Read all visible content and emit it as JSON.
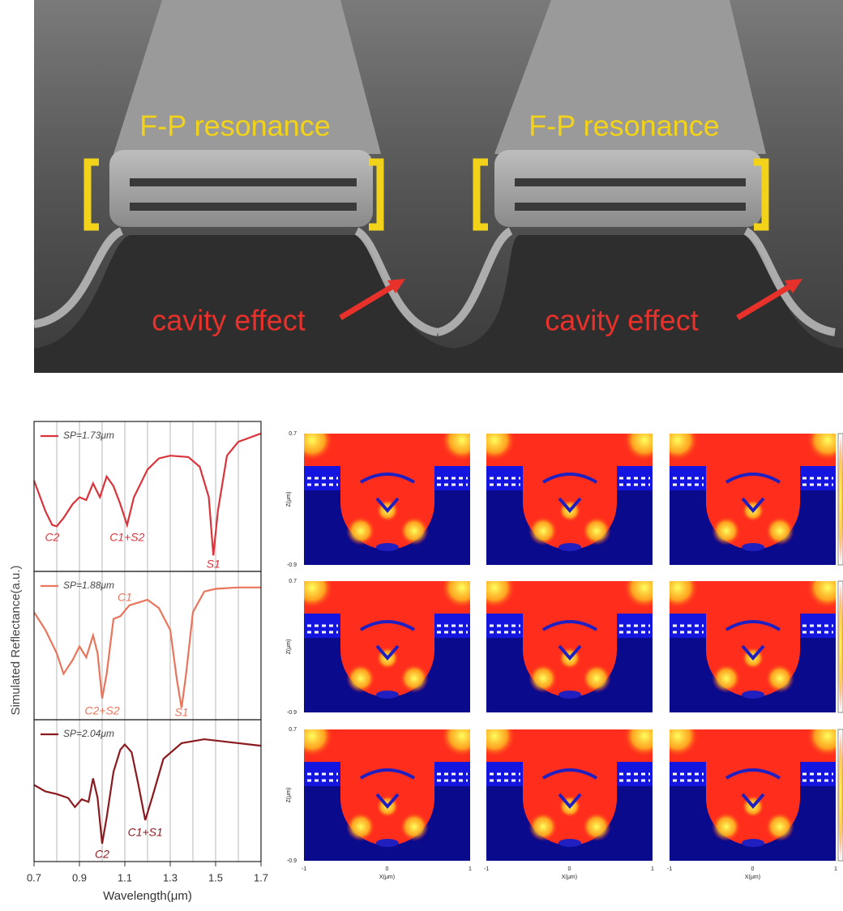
{
  "sem_image": {
    "fp_labels": [
      "F-P resonance",
      "F-P resonance"
    ],
    "cavity_labels": [
      "cavity effect",
      "cavity effect"
    ]
  },
  "chart_data": {
    "type": "line",
    "xlabel": "Wavelength(μm)",
    "ylabel": "Simulated Reflectance(a.u.)",
    "xlim": [
      0.7,
      1.7
    ],
    "xticks": [
      0.7,
      0.9,
      1.1,
      1.3,
      1.5,
      1.7
    ],
    "minor_xticks": [
      0.8,
      1.0,
      1.2,
      1.4,
      1.6
    ],
    "grid": true,
    "panels": [
      {
        "ylim": [
          0,
          1
        ],
        "series": [
          {
            "name": "SP=1.73μm",
            "color": "#d9343b",
            "x": [
              0.7,
              0.75,
              0.78,
              0.8,
              0.83,
              0.87,
              0.9,
              0.93,
              0.96,
              0.99,
              1.02,
              1.05,
              1.08,
              1.11,
              1.14,
              1.2,
              1.25,
              1.3,
              1.38,
              1.43,
              1.47,
              1.49,
              1.51,
              1.55,
              1.6,
              1.65,
              1.7
            ],
            "values": [
              0.62,
              0.4,
              0.3,
              0.29,
              0.35,
              0.45,
              0.5,
              0.48,
              0.6,
              0.5,
              0.65,
              0.58,
              0.45,
              0.3,
              0.5,
              0.7,
              0.78,
              0.8,
              0.79,
              0.72,
              0.5,
              0.08,
              0.4,
              0.8,
              0.9,
              0.93,
              0.96
            ]
          }
        ],
        "annotations": [
          {
            "text": "C2",
            "x": 0.78,
            "position": "below"
          },
          {
            "text": "C1+S2",
            "x": 1.11,
            "position": "below"
          },
          {
            "text": "S1",
            "x": 1.49,
            "position": "below"
          }
        ]
      },
      {
        "ylim": [
          0,
          1
        ],
        "series": [
          {
            "name": "SP=1.88μm",
            "color": "#e8755c",
            "x": [
              0.7,
              0.75,
              0.8,
              0.83,
              0.87,
              0.9,
              0.93,
              0.96,
              0.98,
              1.0,
              1.02,
              1.05,
              1.08,
              1.12,
              1.16,
              1.2,
              1.25,
              1.3,
              1.33,
              1.35,
              1.37,
              1.4,
              1.45,
              1.5,
              1.6,
              1.7
            ],
            "values": [
              0.75,
              0.62,
              0.45,
              0.3,
              0.4,
              0.5,
              0.42,
              0.58,
              0.45,
              0.12,
              0.3,
              0.7,
              0.72,
              0.8,
              0.82,
              0.84,
              0.78,
              0.62,
              0.25,
              0.05,
              0.3,
              0.75,
              0.9,
              0.92,
              0.93,
              0.93
            ]
          }
        ],
        "annotations": [
          {
            "text": "C1",
            "x": 1.1,
            "position": "above"
          },
          {
            "text": "C2+S2",
            "x": 1.0,
            "position": "below"
          },
          {
            "text": "S1",
            "x": 1.35,
            "position": "below"
          }
        ]
      },
      {
        "ylim": [
          0,
          1
        ],
        "series": [
          {
            "name": "SP=2.04μm",
            "color": "#8b1a1f",
            "x": [
              0.7,
              0.75,
              0.8,
              0.85,
              0.88,
              0.91,
              0.94,
              0.96,
              0.98,
              1.0,
              1.02,
              1.05,
              1.08,
              1.1,
              1.13,
              1.16,
              1.19,
              1.22,
              1.27,
              1.35,
              1.45,
              1.55,
              1.7
            ],
            "values": [
              0.55,
              0.5,
              0.48,
              0.45,
              0.38,
              0.44,
              0.42,
              0.6,
              0.45,
              0.1,
              0.3,
              0.65,
              0.82,
              0.86,
              0.8,
              0.55,
              0.28,
              0.45,
              0.75,
              0.87,
              0.9,
              0.88,
              0.85
            ]
          }
        ],
        "annotations": [
          {
            "text": "C2",
            "x": 1.0,
            "position": "below"
          },
          {
            "text": "C1+S1",
            "x": 1.19,
            "position": "below"
          }
        ]
      }
    ]
  },
  "field_maps": {
    "zlabel": "Z(μm)",
    "xlabel": "X(μm)",
    "z_ticks": [
      "0.7",
      "-0.9"
    ],
    "x_ticks": [
      "-1",
      "0",
      "1"
    ]
  }
}
